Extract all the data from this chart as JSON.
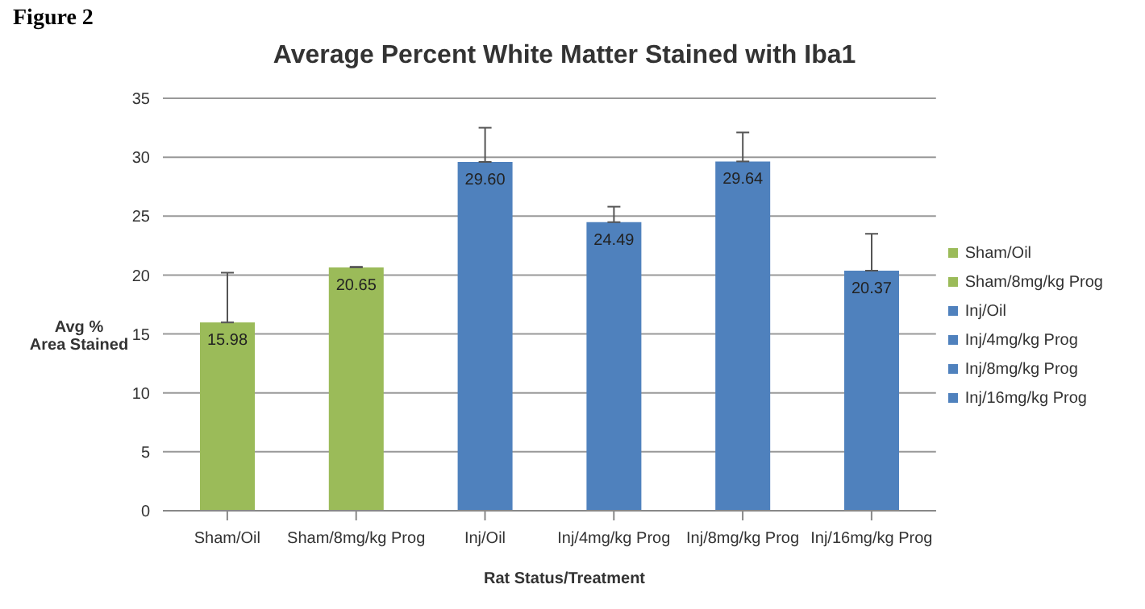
{
  "chart_data": {
    "type": "bar",
    "title": "Average Percent White Matter Stained with Iba1",
    "annotations": [
      "Figure 2"
    ],
    "xlabel": "Rat Status/Treatment",
    "ylabel": "Avg %\nArea Stained",
    "categories": [
      "Sham/Oil",
      "Sham/8mg/kg Prog",
      "Inj/Oil",
      "Inj/4mg/kg Prog",
      "Inj/8mg/kg Prog",
      "Inj/16mg/kg Prog"
    ],
    "stacked": true,
    "series": [
      {
        "name": "Sham/Oil",
        "color": "#9bbb59",
        "values": [
          15.98,
          null,
          null,
          null,
          null,
          null
        ],
        "value_labels": [
          "15.98",
          null,
          null,
          null,
          null,
          null
        ],
        "errors": [
          [
            15.98,
            20.2
          ],
          null,
          null,
          null,
          null,
          null
        ]
      },
      {
        "name": "Sham/8mg/kg Prog",
        "color": "#9bbb59",
        "values": [
          null,
          20.65,
          null,
          null,
          null,
          null
        ],
        "value_labels": [
          null,
          "20.65",
          null,
          null,
          null,
          null
        ],
        "errors": [
          null,
          [
            20.65,
            20.7
          ],
          null,
          null,
          null,
          null
        ]
      },
      {
        "name": "Inj/Oil",
        "color": "#4f81bd",
        "values": [
          null,
          null,
          29.6,
          null,
          null,
          null
        ],
        "value_labels": [
          null,
          null,
          "29.60",
          null,
          null,
          null
        ],
        "errors": [
          null,
          null,
          [
            29.6,
            32.5
          ],
          null,
          null,
          null
        ]
      },
      {
        "name": "Inj/4mg/kg Prog",
        "color": "#4f81bd",
        "values": [
          null,
          null,
          null,
          24.49,
          null,
          null
        ],
        "value_labels": [
          null,
          null,
          null,
          "24.49",
          null,
          null
        ],
        "errors": [
          null,
          null,
          null,
          [
            24.49,
            25.8
          ],
          null,
          null
        ]
      },
      {
        "name": "Inj/8mg/kg Prog",
        "color": "#4f81bd",
        "values": [
          null,
          null,
          null,
          null,
          29.64,
          null
        ],
        "value_labels": [
          null,
          null,
          null,
          null,
          "29.64",
          null
        ],
        "errors": [
          null,
          null,
          null,
          null,
          [
            29.64,
            32.1
          ],
          null
        ]
      },
      {
        "name": "Inj/16mg/kg Prog",
        "color": "#4f81bd",
        "values": [
          null,
          null,
          null,
          null,
          null,
          20.37
        ],
        "value_labels": [
          null,
          null,
          null,
          null,
          null,
          "20.37"
        ],
        "errors": [
          null,
          null,
          null,
          null,
          null,
          [
            20.37,
            23.5
          ]
        ]
      }
    ],
    "ylim": [
      0,
      35
    ],
    "yticks": [
      0,
      5,
      10,
      15,
      20,
      25,
      30,
      35
    ],
    "grid": "y",
    "legend": "right"
  }
}
